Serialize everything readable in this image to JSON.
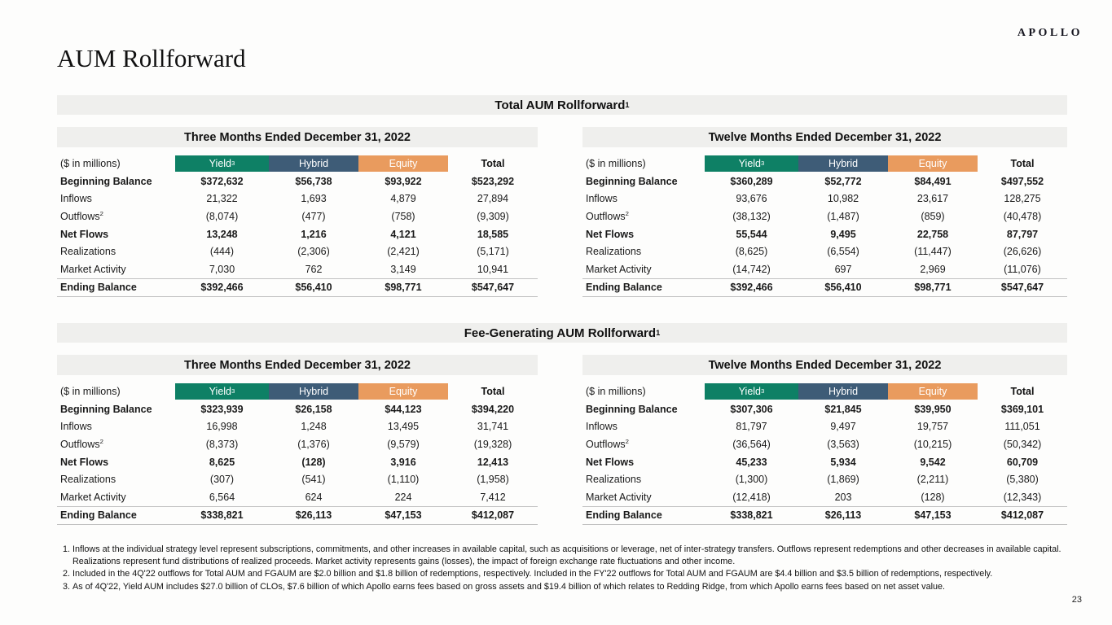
{
  "logo": "APOLLO",
  "title": "AUM Rollforward",
  "page_number": "23",
  "money_label": "($ in millions)",
  "columns": [
    {
      "label": "Yield",
      "sup": "3",
      "color": "#0E8065"
    },
    {
      "label": "Hybrid",
      "sup": "",
      "color": "#3E5C77"
    },
    {
      "label": "Equity",
      "sup": "",
      "color": "#E99B5E"
    },
    {
      "label": "Total",
      "sup": "",
      "color": ""
    }
  ],
  "row_defs": [
    {
      "label": "Beginning Balance",
      "sup": "",
      "bold": true,
      "ending": false
    },
    {
      "label": "Inflows",
      "sup": "",
      "bold": false,
      "ending": false
    },
    {
      "label": "Outflows",
      "sup": "2",
      "bold": false,
      "ending": false
    },
    {
      "label": "Net Flows",
      "sup": "",
      "bold": true,
      "ending": false
    },
    {
      "label": "Realizations",
      "sup": "",
      "bold": false,
      "ending": false
    },
    {
      "label": "Market Activity",
      "sup": "",
      "bold": false,
      "ending": false
    },
    {
      "label": "Ending Balance",
      "sup": "",
      "bold": true,
      "ending": true
    }
  ],
  "sections": [
    {
      "title": "Total AUM Rollforward",
      "title_sup": "1",
      "tables": [
        {
          "period": "Three Months Ended December 31, 2022",
          "rows": [
            [
              "$372,632",
              "$56,738",
              "$93,922",
              "$523,292"
            ],
            [
              "21,322",
              "1,693",
              "4,879",
              "27,894"
            ],
            [
              "(8,074)",
              "(477)",
              "(758)",
              "(9,309)"
            ],
            [
              "13,248",
              "1,216",
              "4,121",
              "18,585"
            ],
            [
              "(444)",
              "(2,306)",
              "(2,421)",
              "(5,171)"
            ],
            [
              "7,030",
              "762",
              "3,149",
              "10,941"
            ],
            [
              "$392,466",
              "$56,410",
              "$98,771",
              "$547,647"
            ]
          ]
        },
        {
          "period": "Twelve Months Ended December 31, 2022",
          "rows": [
            [
              "$360,289",
              "$52,772",
              "$84,491",
              "$497,552"
            ],
            [
              "93,676",
              "10,982",
              "23,617",
              "128,275"
            ],
            [
              "(38,132)",
              "(1,487)",
              "(859)",
              "(40,478)"
            ],
            [
              "55,544",
              "9,495",
              "22,758",
              "87,797"
            ],
            [
              "(8,625)",
              "(6,554)",
              "(11,447)",
              "(26,626)"
            ],
            [
              "(14,742)",
              "697",
              "2,969",
              "(11,076)"
            ],
            [
              "$392,466",
              "$56,410",
              "$98,771",
              "$547,647"
            ]
          ]
        }
      ]
    },
    {
      "title": "Fee-Generating AUM Rollforward",
      "title_sup": "1",
      "tables": [
        {
          "period": "Three Months Ended December 31, 2022",
          "rows": [
            [
              "$323,939",
              "$26,158",
              "$44,123",
              "$394,220"
            ],
            [
              "16,998",
              "1,248",
              "13,495",
              "31,741"
            ],
            [
              "(8,373)",
              "(1,376)",
              "(9,579)",
              "(19,328)"
            ],
            [
              "8,625",
              "(128)",
              "3,916",
              "12,413"
            ],
            [
              "(307)",
              "(541)",
              "(1,110)",
              "(1,958)"
            ],
            [
              "6,564",
              "624",
              "224",
              "7,412"
            ],
            [
              "$338,821",
              "$26,113",
              "$47,153",
              "$412,087"
            ]
          ]
        },
        {
          "period": "Twelve Months Ended December 31, 2022",
          "rows": [
            [
              "$307,306",
              "$21,845",
              "$39,950",
              "$369,101"
            ],
            [
              "81,797",
              "9,497",
              "19,757",
              "111,051"
            ],
            [
              "(36,564)",
              "(3,563)",
              "(10,215)",
              "(50,342)"
            ],
            [
              "45,233",
              "5,934",
              "9,542",
              "60,709"
            ],
            [
              "(1,300)",
              "(1,869)",
              "(2,211)",
              "(5,380)"
            ],
            [
              "(12,418)",
              "203",
              "(128)",
              "(12,343)"
            ],
            [
              "$338,821",
              "$26,113",
              "$47,153",
              "$412,087"
            ]
          ]
        }
      ]
    }
  ],
  "footnotes": [
    "Inflows at the individual strategy level represent subscriptions, commitments, and other increases in available capital, such as acquisitions or leverage, net of inter-strategy transfers. Outflows represent redemptions and other decreases in available capital. Realizations represent fund distributions of realized proceeds. Market activity represents gains (losses), the impact of foreign exchange rate fluctuations and other income.",
    "Included in the 4Q'22 outflows for Total AUM and FGAUM are $2.0 billion and $1.8 billion of redemptions, respectively. Included in the FY'22 outflows for Total AUM and FGAUM are $4.4 billion and $3.5 billion of redemptions, respectively.",
    "As of 4Q'22, Yield AUM includes $27.0 billion of CLOs, $7.6 billion of which Apollo earns fees based on gross assets and $19.4 billion of which relates to Redding Ridge, from which Apollo earns fees based on net asset value."
  ]
}
